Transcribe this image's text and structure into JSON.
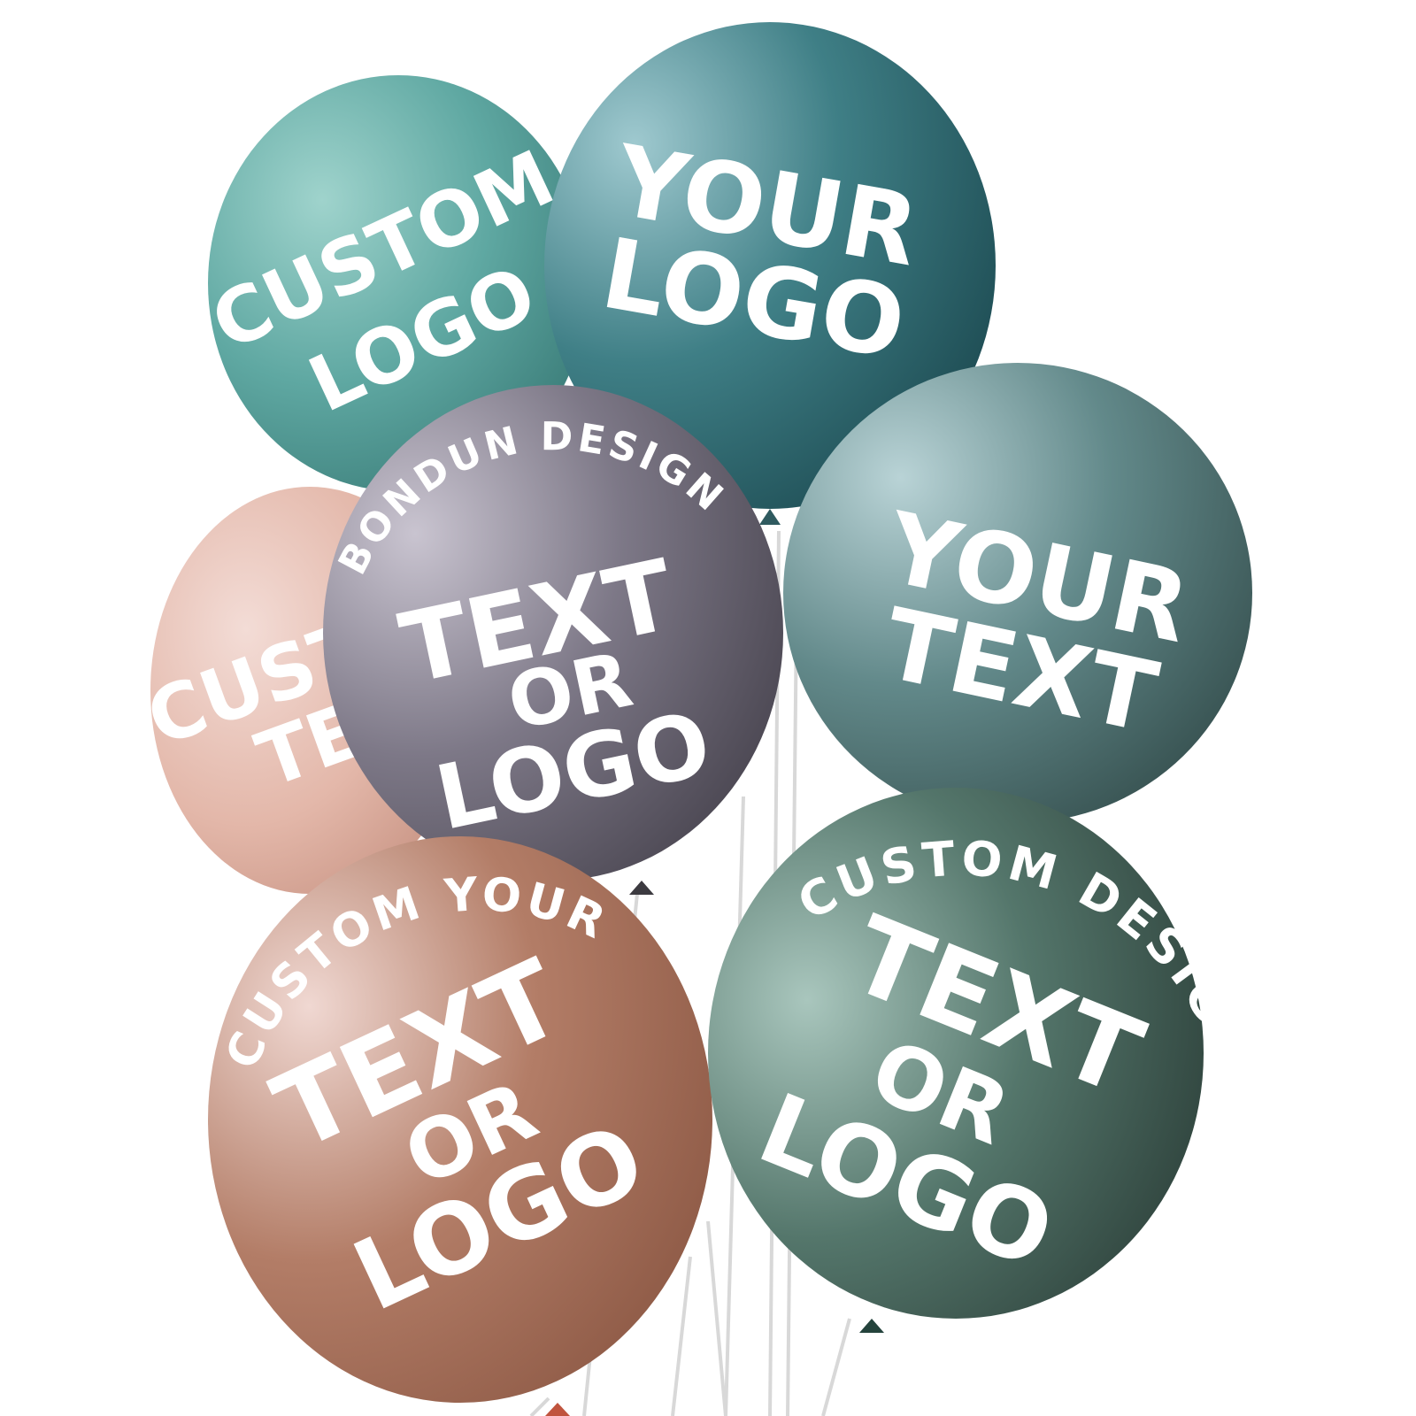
{
  "balloons": {
    "teal_top_left": {
      "line1": "CUSTOM",
      "line2": "LOGO"
    },
    "teal_top_right": {
      "line1": "YOUR",
      "line2": "LOGO"
    },
    "pink_left": {
      "line1": "CUST",
      "line2": "TE"
    },
    "mauve_center": {
      "arc": "BONDUN DESIGN",
      "line1": "TEXT",
      "line2": "OR",
      "line3": "LOGO"
    },
    "sage_right": {
      "line1": "YOUR",
      "line2": "TEXT"
    },
    "peach_bottom_left": {
      "arc": "CUSTOM YOUR",
      "line1": "TEXT",
      "line2": "OR",
      "line3": "LOGO"
    },
    "green_bottom_right": {
      "arc": "CUSTOM DESIGN",
      "line1": "TEXT",
      "line2": "OR",
      "line3": "LOGO"
    }
  },
  "colors": {
    "teal_light": "#5fa8a2",
    "teal_dark": "#2f6b70",
    "pink": "#e8bfb3",
    "mauve": "#6d6a78",
    "sage": "#557c77",
    "peach": "#b7826e",
    "green_dark": "#3f5e55",
    "text": "#ffffff"
  }
}
